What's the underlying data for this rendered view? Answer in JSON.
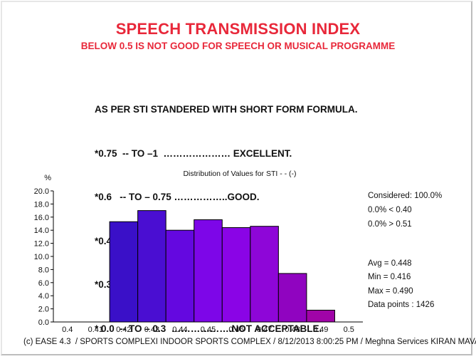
{
  "header": {
    "title": "SPEECH TRANSMISSION INDEX",
    "subtitle": "BELOW 0.5 IS NOT GOOD FOR  SPEECH OR MUSICAL PROGRAMME"
  },
  "rules": {
    "heading": "AS PER STI STANDERED WITH SHORT FORM FORMULA.",
    "lines": [
      "*0.75  -- TO –1  ………………… EXCELLENT.",
      "*0.6   -- TO – 0.75 ……………..GOOD.",
      "*0.45 – TO – 0.6  ………………FAIR.",
      "*0.3  --  TO  -- 0.45……………..POOR.",
      "* 0.0  -- TO – 0.3  ……………….NOT ACCEPTABLE."
    ]
  },
  "chart_data": {
    "type": "bar",
    "title": "Distribution of Values for STI  - - (-)",
    "ylabel": "%",
    "xlabel": "",
    "ylim": [
      0,
      20
    ],
    "y_ticks": [
      "0.0",
      "2.0",
      "4.0",
      "6.0",
      "8.0",
      "10.0",
      "12.0",
      "14.0",
      "16.0",
      "18.0",
      "20.0"
    ],
    "x_ticks": [
      "0.4",
      "0.41",
      "0.42",
      "0.43",
      "0.44",
      "0.45",
      "0.46",
      "0.47",
      "0.48",
      "0.49",
      "0.5"
    ],
    "bins": [
      {
        "from": 0.415,
        "to": 0.425,
        "value": 15.3,
        "color": "#3a10c8"
      },
      {
        "from": 0.425,
        "to": 0.435,
        "value": 17.0,
        "color": "#4a0ed2"
      },
      {
        "from": 0.435,
        "to": 0.445,
        "value": 14.0,
        "color": "#6408e0"
      },
      {
        "from": 0.445,
        "to": 0.455,
        "value": 15.6,
        "color": "#7d06e8"
      },
      {
        "from": 0.455,
        "to": 0.465,
        "value": 14.4,
        "color": "#8a04e6"
      },
      {
        "from": 0.465,
        "to": 0.475,
        "value": 14.6,
        "color": "#8e06d8"
      },
      {
        "from": 0.475,
        "to": 0.485,
        "value": 7.4,
        "color": "#9004c0"
      },
      {
        "from": 0.485,
        "to": 0.495,
        "value": 1.8,
        "color": "#a004a8"
      }
    ],
    "xlim": [
      0.395,
      0.505
    ],
    "grid": false,
    "stats": {
      "considered": "Considered: 100.0%",
      "below": "0.0%  < 0.40",
      "above": "0.0%  > 0.51",
      "avg": "Avg = 0.448",
      "min": "Min = 0.416",
      "max": "Max = 0.490",
      "points": "Data points : 1426"
    }
  },
  "footer": "(c) EASE 4.3  / SPORTS COMPLEXI INDOOR SPORTS COMPLEX / 8/12/2013 8:00:25 PM / Meghna Services KIRAN MAVAD"
}
